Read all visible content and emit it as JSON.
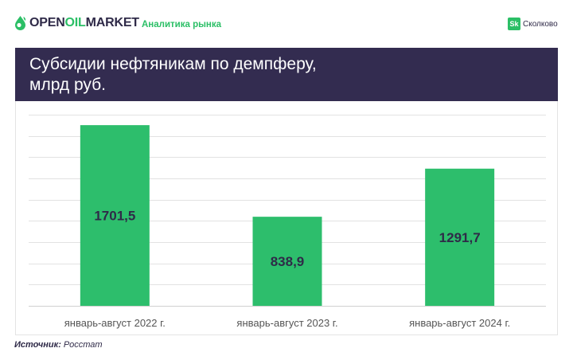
{
  "header": {
    "logo_open": "OPEN",
    "logo_oil": "OIL",
    "logo_market": "MARKET",
    "subtitle": "Аналитика рынка",
    "partner_badge": "Sk",
    "partner_name": "Сколково"
  },
  "title_line1": "Субсидии нефтяникам по демпферу,",
  "title_line2": "млрд руб.",
  "source": {
    "label": "Источник:",
    "value": "Росстат"
  },
  "colors": {
    "bar": "#2dbe6c",
    "title_band": "#332c50",
    "accent": "#2bbf66"
  },
  "chart_data": {
    "type": "bar",
    "title": "Субсидии нефтяникам по демпферу, млрд руб.",
    "categories": [
      "январь-август 2022 г.",
      "январь-август 2023 г.",
      "январь-август 2024 г."
    ],
    "values": [
      1701.5,
      838.9,
      1291.7
    ],
    "value_labels": [
      "1701,5",
      "838,9",
      "1291,7"
    ],
    "ylim": [
      0,
      1800
    ],
    "grid": true,
    "legend": "none"
  }
}
